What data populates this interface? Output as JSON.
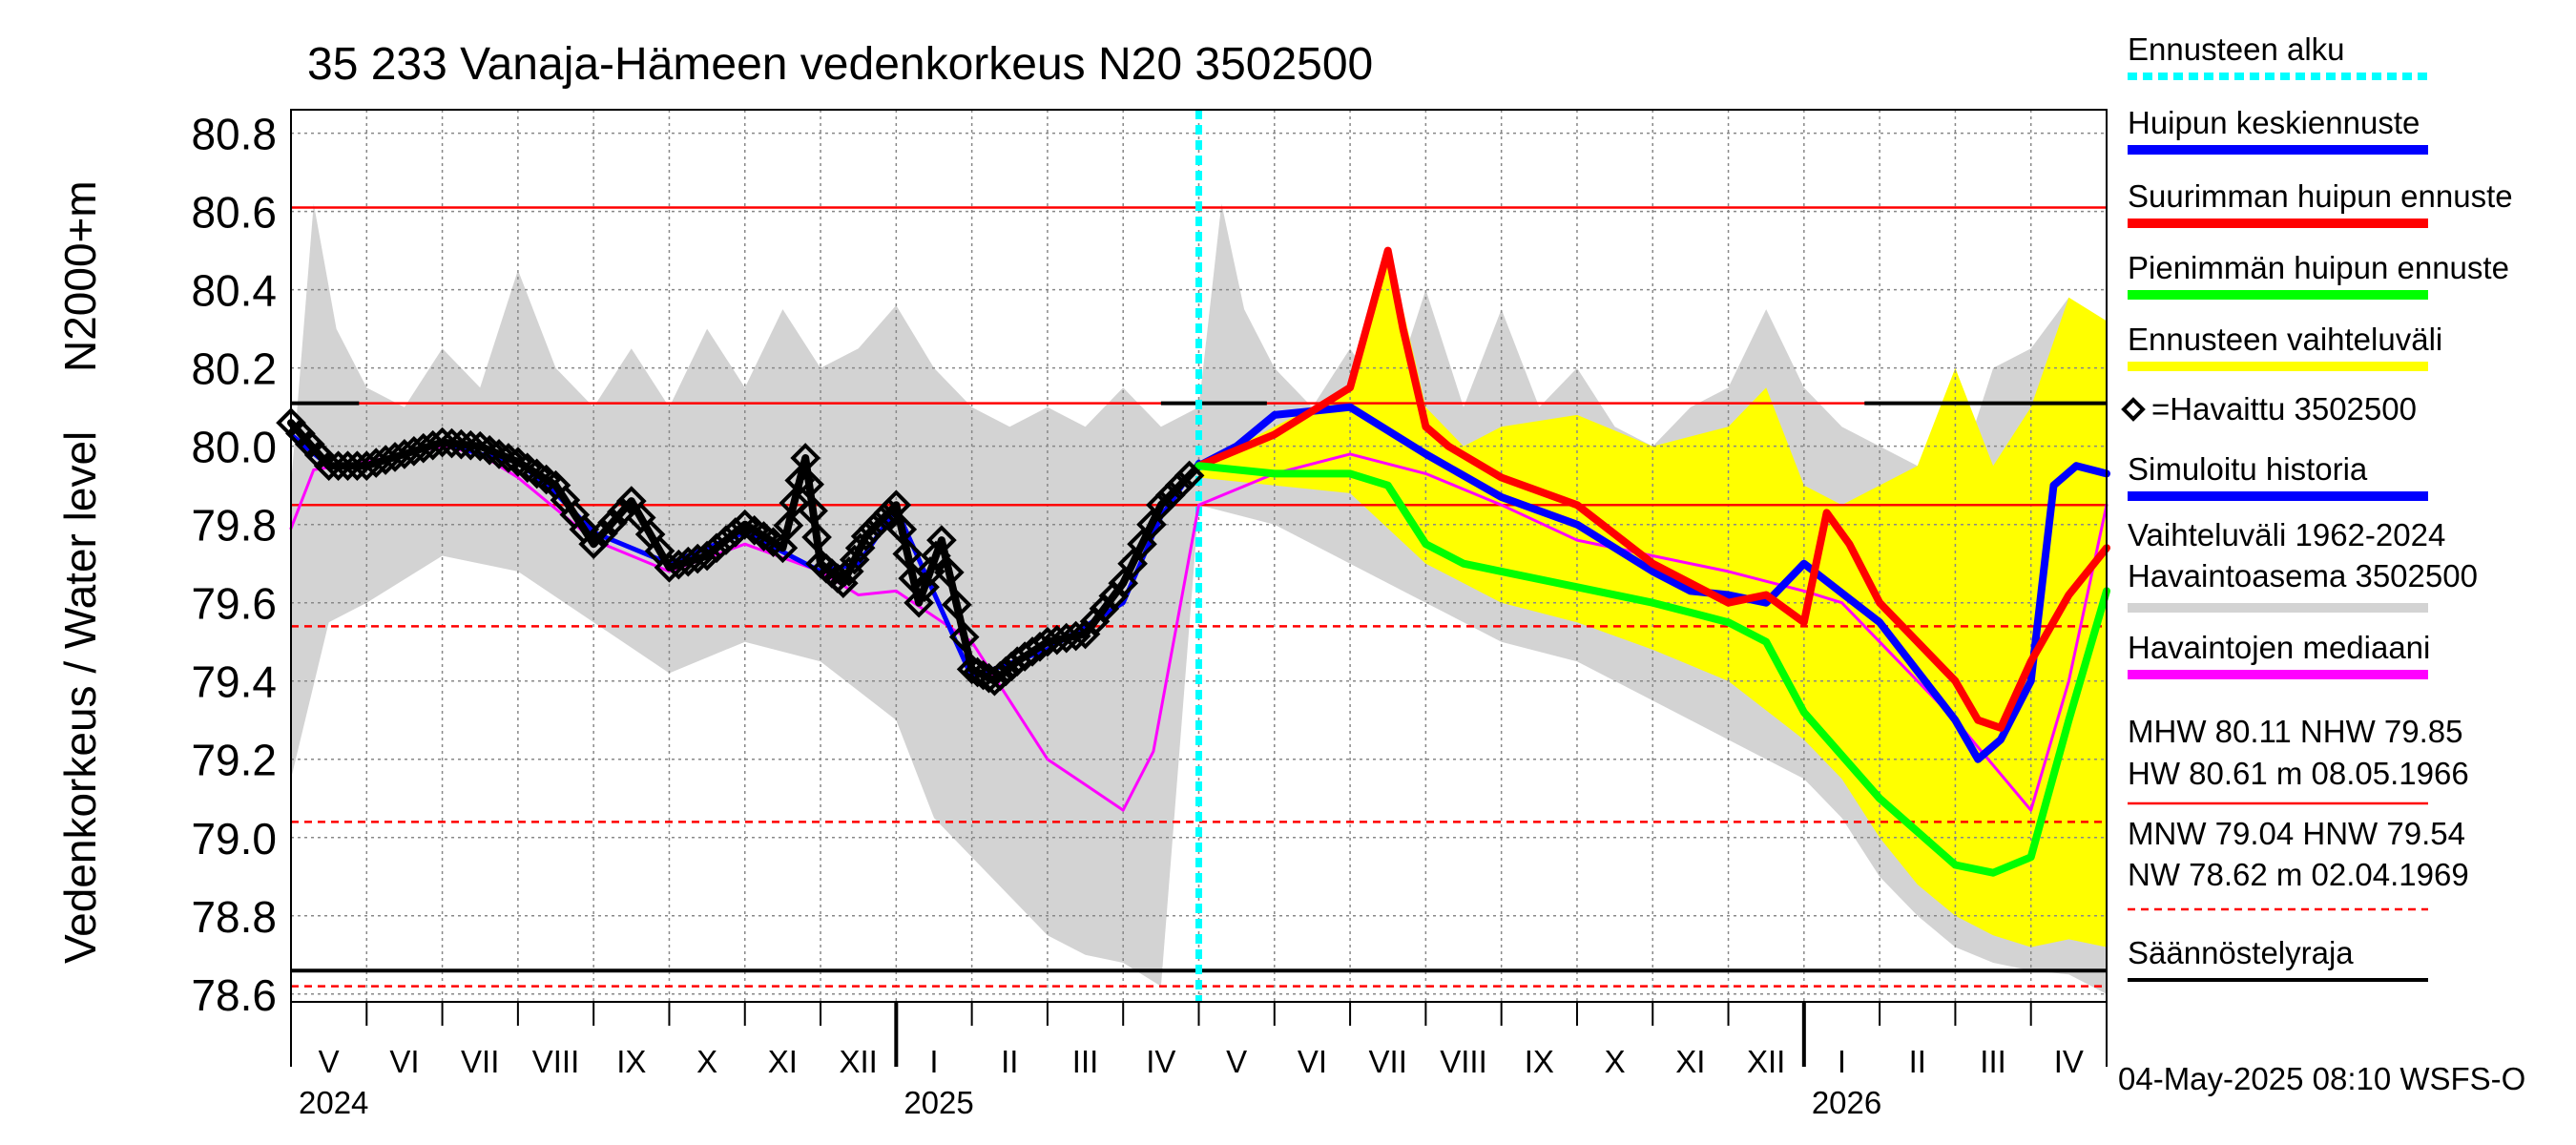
{
  "chart_data": {
    "type": "line",
    "title": "35 233 Vanaja-Hämeen vedenkorkeus N20 3502500",
    "ylabel_top": "N2000+m",
    "ylabel": "Vedenkorkeus / Water level",
    "ylim": [
      78.58,
      80.86
    ],
    "y_ticks": [
      "80.8",
      "80.6",
      "80.4",
      "80.2",
      "80.0",
      "79.8",
      "79.6",
      "79.4",
      "79.2",
      "79.0",
      "78.8",
      "78.6"
    ],
    "y_tick_values": [
      80.8,
      80.6,
      80.4,
      80.2,
      80.0,
      79.8,
      79.6,
      79.4,
      79.2,
      79.0,
      78.8,
      78.6
    ],
    "x_month_labels": [
      "V",
      "VI",
      "VII",
      "VIII",
      "IX",
      "X",
      "XI",
      "XII",
      "I",
      "II",
      "III",
      "IV",
      "V",
      "VI",
      "VII",
      "VIII",
      "IX",
      "X",
      "XI",
      "XII",
      "I",
      "II",
      "III",
      "IV"
    ],
    "x_year_labels": [
      "2024",
      "2025",
      "2026"
    ],
    "x_year_month_index": [
      0,
      8,
      20
    ],
    "forecast_start_month": 12,
    "reference_lines": {
      "MHW": 80.11,
      "NHW": 79.85,
      "HW": 80.61,
      "MNW": 79.04,
      "HNW": 79.54,
      "NW": 78.62,
      "regulation_limit": 78.66
    },
    "series": [
      {
        "name": "Havaintojen mediaani",
        "color": "#ff00ff",
        "x": [
          0,
          0.3,
          1,
          2,
          2.5,
          3,
          4,
          5,
          6,
          7,
          7.5,
          8,
          9,
          10,
          11,
          11.4,
          12,
          13,
          14,
          15,
          16,
          17,
          18,
          19,
          20,
          20.5,
          21,
          22,
          23,
          23.5,
          24
        ],
        "y": [
          79.79,
          79.94,
          79.96,
          80.0,
          79.98,
          79.92,
          79.76,
          79.68,
          79.75,
          79.68,
          79.62,
          79.63,
          79.5,
          79.2,
          79.07,
          79.22,
          79.85,
          79.93,
          79.98,
          79.93,
          79.85,
          79.76,
          79.72,
          79.68,
          79.63,
          79.6,
          79.5,
          79.3,
          79.07,
          79.4,
          79.85
        ]
      },
      {
        "name": "Simuloitu historia",
        "color": "#0000ff",
        "x": [
          0,
          0.5,
          1,
          2,
          2.5,
          3,
          3.5,
          4,
          5,
          6,
          7,
          7.5,
          8,
          9,
          10,
          11,
          11.5,
          12
        ],
        "y": [
          80.03,
          79.95,
          79.95,
          80.01,
          79.98,
          79.96,
          79.88,
          79.78,
          79.7,
          79.78,
          79.68,
          79.7,
          79.84,
          79.41,
          79.48,
          79.6,
          79.82,
          79.96
        ]
      },
      {
        "name": "Havaittu 3502500",
        "color": "#000000",
        "x": [
          0,
          0.5,
          1,
          1.5,
          2,
          2.5,
          3,
          3.5,
          4,
          4.5,
          5,
          5.5,
          6,
          6.5,
          6.8,
          7,
          7.3,
          7.6,
          8,
          8.3,
          8.6,
          9,
          9.3,
          9.6,
          10,
          10.5,
          11,
          11.5,
          12
        ],
        "y": [
          80.06,
          79.95,
          79.95,
          79.98,
          80.01,
          80.0,
          79.96,
          79.9,
          79.75,
          79.86,
          79.69,
          79.72,
          79.8,
          79.74,
          79.97,
          79.7,
          79.65,
          79.77,
          79.85,
          79.6,
          79.76,
          79.43,
          79.4,
          79.45,
          79.5,
          79.52,
          79.65,
          79.85,
          79.95
        ]
      },
      {
        "name": "Huipun keskiennuste",
        "color": "#0000ff",
        "x": [
          12,
          12.5,
          13,
          14,
          15,
          16,
          17,
          18,
          18.5,
          19,
          19.5,
          20,
          21,
          22,
          22.3,
          22.6,
          23,
          23.3,
          23.6,
          24
        ],
        "y": [
          79.95,
          80.0,
          80.08,
          80.1,
          79.98,
          79.87,
          79.8,
          79.68,
          79.63,
          79.62,
          79.6,
          79.7,
          79.55,
          79.3,
          79.2,
          79.25,
          79.4,
          79.9,
          79.95,
          79.93
        ]
      },
      {
        "name": "Suurimman huipun ennuste",
        "color": "#ff0000",
        "x": [
          12,
          13,
          14,
          14.5,
          14.7,
          15,
          15.3,
          16,
          17,
          18,
          19,
          19.5,
          20,
          20.3,
          20.6,
          21,
          22,
          22.3,
          22.6,
          23,
          23.5,
          24
        ],
        "y": [
          79.95,
          80.03,
          80.15,
          80.5,
          80.3,
          80.05,
          80.0,
          79.92,
          79.85,
          79.7,
          79.6,
          79.62,
          79.55,
          79.83,
          79.75,
          79.6,
          79.4,
          79.3,
          79.28,
          79.45,
          79.62,
          79.74
        ]
      },
      {
        "name": "Pienimmän huipun ennuste",
        "color": "#00ff00",
        "x": [
          12,
          13,
          14,
          14.5,
          15,
          15.5,
          16,
          17,
          18,
          19,
          19.5,
          20,
          21,
          22,
          22.5,
          23,
          23.5,
          24
        ],
        "y": [
          79.95,
          79.93,
          79.93,
          79.9,
          79.75,
          79.7,
          79.68,
          79.64,
          79.6,
          79.55,
          79.5,
          79.32,
          79.1,
          78.93,
          78.91,
          78.95,
          79.3,
          79.63
        ]
      }
    ]
  },
  "legend": {
    "items": [
      {
        "label": "Ennusteen alku",
        "color": "#00ffff",
        "style": "dotted"
      },
      {
        "label": "Huipun keskiennuste",
        "color": "#0000ff",
        "style": "solid"
      },
      {
        "label": "Suurimman huipun ennuste",
        "color": "#ff0000",
        "style": "solid"
      },
      {
        "label": "Pienimmän huipun ennuste",
        "color": "#00ff00",
        "style": "solid"
      },
      {
        "label": "Ennusteen vaihteluväli",
        "color": "#ffff00",
        "style": "solid"
      },
      {
        "label": "=Havaittu 3502500",
        "color": "#000000",
        "style": "diamond"
      },
      {
        "label": "Simuloitu historia",
        "color": "#0000ff",
        "style": "solid"
      },
      {
        "label": "Vaihteluväli 1962-2024",
        "label2": " Havaintoasema 3502500",
        "color": "#d3d3d3",
        "style": "solid"
      },
      {
        "label": "Havaintojen mediaani",
        "color": "#ff00ff",
        "style": "solid"
      }
    ],
    "stats_high": {
      "line1": "MHW  80.11 NHW  79.85",
      "line2": "HW  80.61 m 08.05.1966"
    },
    "stats_low": {
      "line1": "MNW  79.04 HNW  79.54",
      "line2": "NW  78.62 m 02.04.1969"
    },
    "regulation_label": "Säännöstelyraja"
  },
  "footer": "04-May-2025 08:10 WSFS-O",
  "colors": {
    "range_band": "#d3d3d3",
    "forecast_band": "#ffff00",
    "forecast_start": "#00ffff",
    "ref_red": "#ff0000",
    "grid": "#888888"
  }
}
